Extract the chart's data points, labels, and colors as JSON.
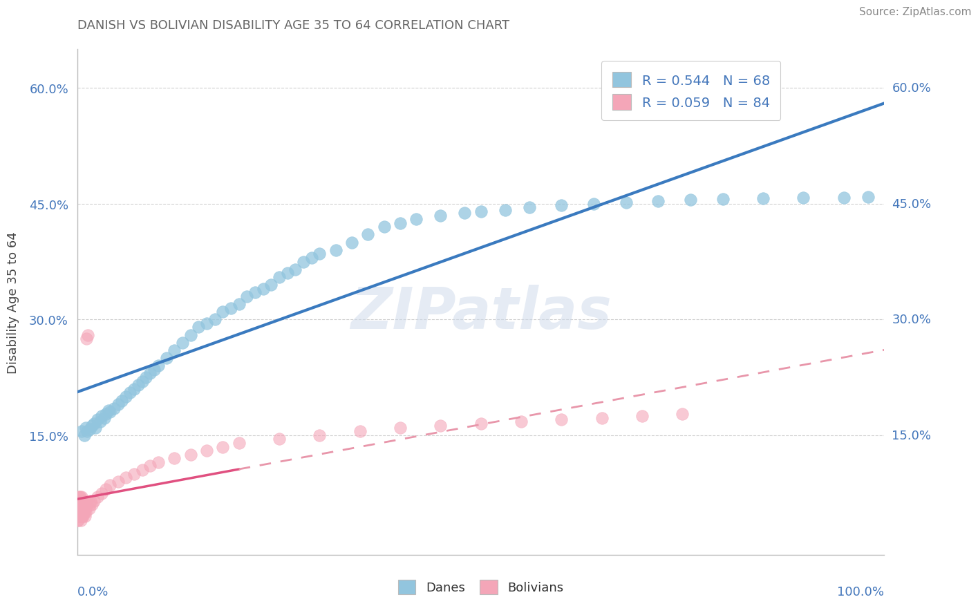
{
  "title": "DANISH VS BOLIVIAN DISABILITY AGE 35 TO 64 CORRELATION CHART",
  "source": "Source: ZipAtlas.com",
  "ylabel": "Disability Age 35 to 64",
  "xlim": [
    0.0,
    1.0
  ],
  "ylim": [
    -0.005,
    0.65
  ],
  "yticks": [
    0.15,
    0.3,
    0.45,
    0.6
  ],
  "ytick_labels": [
    "15.0%",
    "30.0%",
    "45.0%",
    "60.0%"
  ],
  "danes_R": 0.544,
  "danes_N": 68,
  "bolivians_R": 0.059,
  "bolivians_N": 84,
  "danes_color": "#92c5de",
  "bolivians_color": "#f4a6b8",
  "danes_line_color": "#3a7abf",
  "bolivians_solid_color": "#e05080",
  "bolivians_dash_color": "#e896aa",
  "legend_label_danes": "R = 0.544   N = 68",
  "legend_label_bolivians": "R = 0.059   N = 84",
  "danes_x": [
    0.005,
    0.008,
    0.01,
    0.012,
    0.015,
    0.018,
    0.02,
    0.022,
    0.025,
    0.028,
    0.03,
    0.033,
    0.035,
    0.038,
    0.04,
    0.045,
    0.05,
    0.055,
    0.06,
    0.065,
    0.07,
    0.075,
    0.08,
    0.085,
    0.09,
    0.095,
    0.1,
    0.11,
    0.12,
    0.13,
    0.14,
    0.15,
    0.16,
    0.17,
    0.18,
    0.19,
    0.2,
    0.21,
    0.22,
    0.23,
    0.24,
    0.25,
    0.26,
    0.27,
    0.28,
    0.29,
    0.3,
    0.32,
    0.34,
    0.36,
    0.38,
    0.4,
    0.42,
    0.45,
    0.48,
    0.5,
    0.53,
    0.56,
    0.6,
    0.64,
    0.68,
    0.72,
    0.76,
    0.8,
    0.85,
    0.9,
    0.95,
    0.98
  ],
  "danes_y": [
    0.155,
    0.15,
    0.16,
    0.155,
    0.158,
    0.162,
    0.165,
    0.16,
    0.17,
    0.168,
    0.175,
    0.172,
    0.178,
    0.182,
    0.18,
    0.185,
    0.19,
    0.195,
    0.2,
    0.205,
    0.21,
    0.215,
    0.22,
    0.225,
    0.23,
    0.235,
    0.24,
    0.25,
    0.26,
    0.27,
    0.28,
    0.29,
    0.295,
    0.3,
    0.31,
    0.315,
    0.32,
    0.33,
    0.335,
    0.34,
    0.345,
    0.355,
    0.36,
    0.365,
    0.375,
    0.38,
    0.385,
    0.39,
    0.4,
    0.41,
    0.42,
    0.425,
    0.43,
    0.435,
    0.438,
    0.44,
    0.442,
    0.445,
    0.448,
    0.45,
    0.452,
    0.453,
    0.455,
    0.456,
    0.457,
    0.458,
    0.458,
    0.459
  ],
  "bolivians_x": [
    0.0,
    0.0,
    0.0,
    0.001,
    0.001,
    0.001,
    0.001,
    0.001,
    0.001,
    0.002,
    0.002,
    0.002,
    0.002,
    0.002,
    0.002,
    0.003,
    0.003,
    0.003,
    0.003,
    0.003,
    0.003,
    0.003,
    0.004,
    0.004,
    0.004,
    0.004,
    0.004,
    0.004,
    0.005,
    0.005,
    0.005,
    0.005,
    0.005,
    0.005,
    0.006,
    0.006,
    0.006,
    0.006,
    0.006,
    0.007,
    0.007,
    0.007,
    0.007,
    0.008,
    0.008,
    0.008,
    0.009,
    0.009,
    0.01,
    0.01,
    0.011,
    0.012,
    0.013,
    0.014,
    0.015,
    0.016,
    0.018,
    0.02,
    0.025,
    0.03,
    0.035,
    0.04,
    0.05,
    0.06,
    0.07,
    0.08,
    0.09,
    0.1,
    0.12,
    0.14,
    0.16,
    0.18,
    0.2,
    0.25,
    0.3,
    0.35,
    0.4,
    0.45,
    0.5,
    0.55,
    0.6,
    0.65,
    0.7,
    0.75
  ],
  "bolivians_y": [
    0.05,
    0.06,
    0.04,
    0.055,
    0.045,
    0.065,
    0.05,
    0.07,
    0.04,
    0.055,
    0.06,
    0.045,
    0.07,
    0.05,
    0.065,
    0.055,
    0.045,
    0.06,
    0.05,
    0.065,
    0.045,
    0.07,
    0.055,
    0.045,
    0.06,
    0.05,
    0.065,
    0.04,
    0.055,
    0.045,
    0.06,
    0.05,
    0.065,
    0.07,
    0.055,
    0.045,
    0.06,
    0.05,
    0.065,
    0.055,
    0.045,
    0.06,
    0.065,
    0.05,
    0.055,
    0.06,
    0.045,
    0.065,
    0.05,
    0.055,
    0.275,
    0.06,
    0.28,
    0.055,
    0.06,
    0.065,
    0.06,
    0.065,
    0.07,
    0.075,
    0.08,
    0.085,
    0.09,
    0.095,
    0.1,
    0.105,
    0.11,
    0.115,
    0.12,
    0.125,
    0.13,
    0.135,
    0.14,
    0.145,
    0.15,
    0.155,
    0.16,
    0.162,
    0.165,
    0.168,
    0.17,
    0.172,
    0.175,
    0.178
  ],
  "background_color": "#ffffff",
  "grid_color": "#d0d0d0",
  "title_color": "#666666",
  "axis_color": "#4477bb",
  "watermark": "ZIPatlas"
}
